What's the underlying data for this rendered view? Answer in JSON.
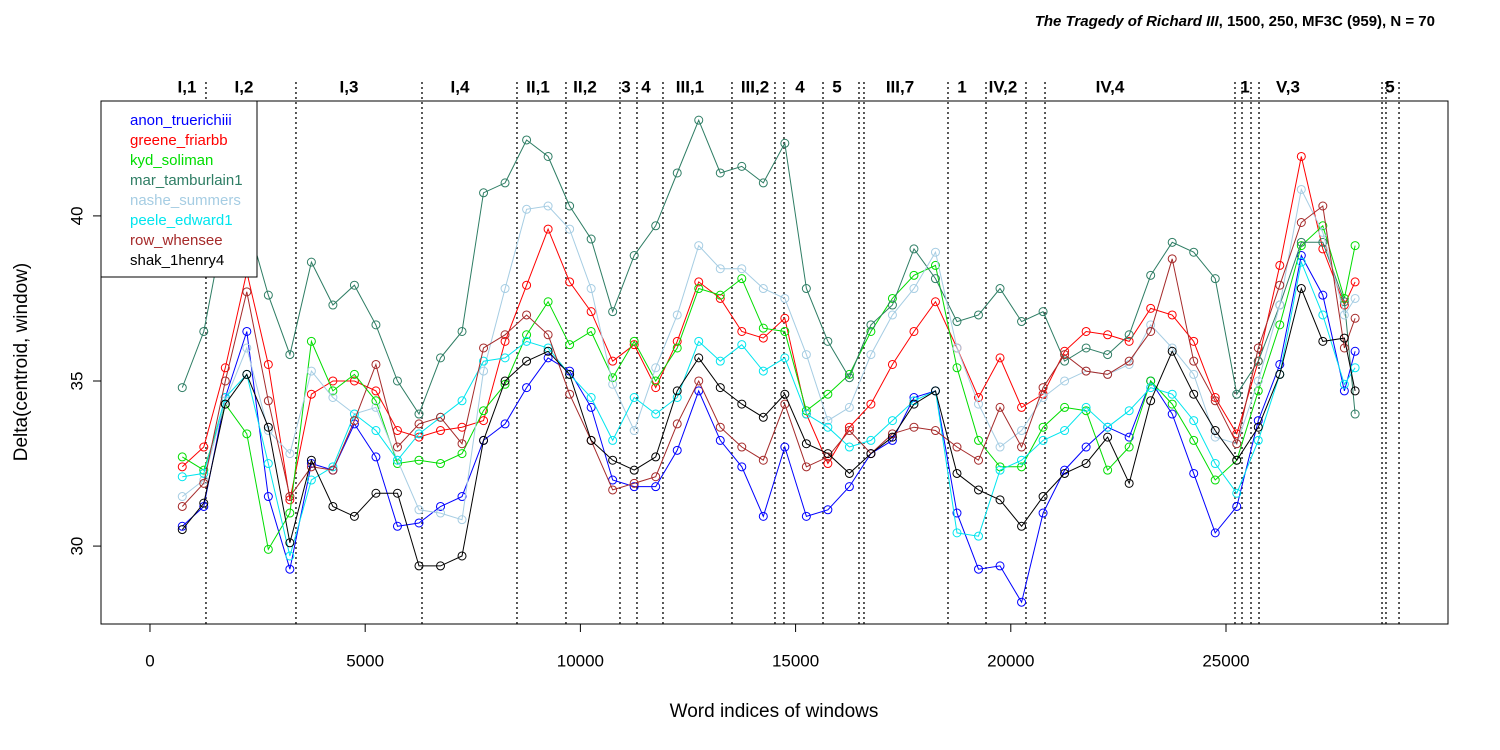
{
  "chart_data": {
    "type": "line",
    "title": {
      "italic": "The Tragedy of Richard III",
      "rest": ", 1500, 250, MF3C (959), N = 70"
    },
    "xlabel": "Word indices of windows",
    "ylabel": "Delta(centroid, window)",
    "xlim": [
      -1138,
      30158
    ],
    "ylim": [
      27.64,
      43.48
    ],
    "xticks": [
      0,
      5000,
      10000,
      15000,
      20000,
      25000
    ],
    "yticks": [
      30,
      35,
      40
    ],
    "legend": "top-left",
    "x": [
      750,
      1250,
      1750,
      2250,
      2750,
      3250,
      3750,
      4250,
      4750,
      5250,
      5750,
      6250,
      6750,
      7250,
      7750,
      8250,
      8750,
      9250,
      9750,
      10250,
      10750,
      11250,
      11750,
      12250,
      12750,
      13250,
      13750,
      14250,
      14750,
      15250,
      15750,
      16250,
      16750,
      17250,
      17750,
      18250,
      18750,
      19250,
      19750,
      20250,
      20750,
      21250,
      21750,
      22250,
      22750,
      23250,
      23750,
      24250,
      24750,
      25250,
      25750,
      26250,
      26750,
      27250,
      27750,
      28000
    ],
    "series": [
      {
        "name": "anon_truerichiii",
        "color": "#0000ff",
        "values": [
          30.6,
          31.2,
          34.5,
          36.5,
          31.5,
          29.3,
          32.5,
          32.3,
          33.7,
          32.7,
          30.6,
          30.7,
          31.2,
          31.5,
          33.2,
          33.7,
          34.8,
          35.7,
          35.3,
          34.2,
          32.0,
          31.8,
          31.8,
          32.9,
          34.7,
          33.2,
          32.4,
          30.9,
          33.0,
          30.9,
          31.1,
          31.8,
          32.8,
          33.2,
          34.5,
          34.7,
          31.0,
          29.3,
          29.4,
          28.3,
          31.0,
          32.3,
          33.0,
          33.6,
          33.3,
          35.0,
          34.0,
          32.2,
          30.4,
          31.2,
          33.8,
          35.5,
          38.8,
          37.6,
          34.7,
          35.9
        ]
      },
      {
        "name": "greene_friarbb",
        "color": "#ff0000",
        "values": [
          32.4,
          33.0,
          35.4,
          38.3,
          35.5,
          31.4,
          34.6,
          35.0,
          35.0,
          34.7,
          33.5,
          33.3,
          33.5,
          33.6,
          33.8,
          36.2,
          37.9,
          39.6,
          38.0,
          37.1,
          35.6,
          36.1,
          34.8,
          36.2,
          38.0,
          37.5,
          36.5,
          36.3,
          36.9,
          34.0,
          32.5,
          33.6,
          34.3,
          35.5,
          36.5,
          37.4,
          36.0,
          34.5,
          35.7,
          34.2,
          34.6,
          35.9,
          36.5,
          36.4,
          36.2,
          37.2,
          37.0,
          36.2,
          34.5,
          33.4,
          35.6,
          38.5,
          41.8,
          39.0,
          37.3,
          38.0
        ]
      },
      {
        "name": "kyd_soliman",
        "color": "#00dd00",
        "values": [
          32.7,
          32.3,
          34.3,
          33.4,
          29.9,
          31.0,
          36.2,
          34.7,
          35.2,
          34.4,
          32.5,
          32.6,
          32.5,
          32.8,
          34.1,
          34.9,
          36.4,
          37.4,
          36.1,
          36.5,
          35.1,
          36.2,
          35.0,
          36.0,
          37.8,
          37.6,
          38.1,
          36.6,
          36.5,
          34.1,
          34.6,
          35.2,
          36.5,
          37.5,
          38.2,
          38.5,
          35.4,
          33.2,
          32.4,
          32.4,
          33.6,
          34.2,
          34.1,
          32.3,
          33.0,
          35.0,
          34.3,
          33.2,
          32.0,
          32.6,
          34.7,
          36.7,
          39.1,
          39.7,
          37.5,
          39.1
        ]
      },
      {
        "name": "mar_tamburlain1",
        "color": "#2e7d64",
        "values": [
          34.8,
          36.5,
          39.9,
          39.9,
          37.6,
          35.8,
          38.6,
          37.3,
          37.9,
          36.7,
          35.0,
          34.0,
          35.7,
          36.5,
          40.7,
          41.0,
          42.3,
          41.8,
          40.3,
          39.3,
          37.1,
          38.8,
          39.7,
          41.3,
          42.9,
          41.3,
          41.5,
          41.0,
          42.2,
          37.8,
          36.2,
          35.1,
          36.7,
          37.3,
          39.0,
          38.1,
          36.8,
          37.0,
          37.8,
          36.8,
          37.1,
          35.6,
          36.0,
          35.8,
          36.4,
          38.2,
          39.2,
          38.9,
          38.1,
          34.6,
          35.6,
          37.3,
          39.2,
          39.2,
          37.4,
          34.0
        ]
      },
      {
        "name": "nashe_summers",
        "color": "#a6cde3",
        "values": [
          31.5,
          32.0,
          34.4,
          36.0,
          33.5,
          32.8,
          35.3,
          34.5,
          34.0,
          34.2,
          32.6,
          31.1,
          31.0,
          30.8,
          35.3,
          37.8,
          40.2,
          40.3,
          39.6,
          37.8,
          34.9,
          33.5,
          35.4,
          37.0,
          39.1,
          38.4,
          38.4,
          37.8,
          37.5,
          35.8,
          33.8,
          34.2,
          35.8,
          37.0,
          37.8,
          38.9,
          36.0,
          34.3,
          33.0,
          33.5,
          34.5,
          35.0,
          35.3,
          35.2,
          35.5,
          36.7,
          36.0,
          35.2,
          33.3,
          33.1,
          35.0,
          37.3,
          40.8,
          39.5,
          37.0,
          37.5
        ]
      },
      {
        "name": "peele_edward1",
        "color": "#00e5ee",
        "values": [
          32.1,
          32.2,
          34.5,
          35.2,
          32.5,
          29.7,
          32.0,
          32.4,
          34.0,
          33.5,
          32.6,
          33.4,
          33.9,
          34.4,
          35.6,
          35.7,
          36.2,
          36.0,
          35.2,
          34.5,
          33.2,
          34.5,
          34.0,
          34.5,
          36.2,
          35.6,
          36.1,
          35.3,
          35.7,
          34.0,
          33.6,
          33.0,
          33.2,
          33.8,
          34.4,
          34.7,
          30.4,
          30.3,
          32.3,
          32.6,
          33.2,
          33.5,
          34.2,
          33.6,
          34.1,
          34.8,
          34.6,
          33.8,
          32.5,
          31.6,
          33.2,
          35.2,
          38.6,
          37.0,
          34.9,
          35.4
        ]
      },
      {
        "name": "row_whensee",
        "color": "#a52a2a",
        "values": [
          31.2,
          31.9,
          35.0,
          37.7,
          34.4,
          31.5,
          32.4,
          32.3,
          33.8,
          35.5,
          33.0,
          33.7,
          33.9,
          33.1,
          36.0,
          36.4,
          37.0,
          36.4,
          34.6,
          33.2,
          31.7,
          31.9,
          32.1,
          33.7,
          35.0,
          33.6,
          33.0,
          32.6,
          34.3,
          32.4,
          32.7,
          33.5,
          32.8,
          33.4,
          33.6,
          33.5,
          33.0,
          32.6,
          34.2,
          33.0,
          34.8,
          35.8,
          35.3,
          35.2,
          35.6,
          36.5,
          38.7,
          35.6,
          34.4,
          33.1,
          36.0,
          37.9,
          39.8,
          40.3,
          36.0,
          36.9
        ]
      },
      {
        "name": "shak_1henry4",
        "color": "#000000",
        "values": [
          30.5,
          31.3,
          34.3,
          35.2,
          33.6,
          30.1,
          32.6,
          31.2,
          30.9,
          31.6,
          31.6,
          29.4,
          29.4,
          29.7,
          33.2,
          35.0,
          35.6,
          35.9,
          35.2,
          33.2,
          32.6,
          32.3,
          32.7,
          34.7,
          35.7,
          34.8,
          34.3,
          33.9,
          34.6,
          33.1,
          32.8,
          32.2,
          32.8,
          33.3,
          34.3,
          34.7,
          32.2,
          31.7,
          31.4,
          30.6,
          31.5,
          32.2,
          32.5,
          33.3,
          31.9,
          34.4,
          35.9,
          34.6,
          33.5,
          32.6,
          33.6,
          35.2,
          37.8,
          36.2,
          36.3,
          34.7
        ]
      }
    ],
    "scene_boundaries": [
      1301,
      3392,
      6320,
      8527,
      9665,
      10920,
      11315,
      11919,
      13522,
      14521,
      14730,
      15637,
      16473,
      16589,
      18541,
      19424,
      20353,
      20795,
      25209,
      25372,
      25581,
      25767,
      28625,
      28717,
      29020
    ],
    "scene_labels": [
      {
        "label": "I,1",
        "x": 860
      },
      {
        "label": "I,2",
        "x": 2184
      },
      {
        "label": "I,3",
        "x": 4624
      },
      {
        "label": "I,4",
        "x": 7203
      },
      {
        "label": "II,1",
        "x": 9015
      },
      {
        "label": "II,2",
        "x": 10107
      },
      {
        "label": "3",
        "x": 11059
      },
      {
        "label": "4",
        "x": 11524
      },
      {
        "label": "III,1",
        "x": 12546
      },
      {
        "label": "III,2",
        "x": 14057
      },
      {
        "label": "4",
        "x": 15102
      },
      {
        "label": "5",
        "x": 15962
      },
      {
        "label": "III,7",
        "x": 17426
      },
      {
        "label": "1",
        "x": 18866
      },
      {
        "label": "IV,2",
        "x": 19818
      },
      {
        "label": "IV,4",
        "x": 22305
      },
      {
        "label": "1",
        "x": 25441
      },
      {
        "label": "V,3",
        "x": 26441
      },
      {
        "label": "5",
        "x": 28810
      }
    ]
  }
}
